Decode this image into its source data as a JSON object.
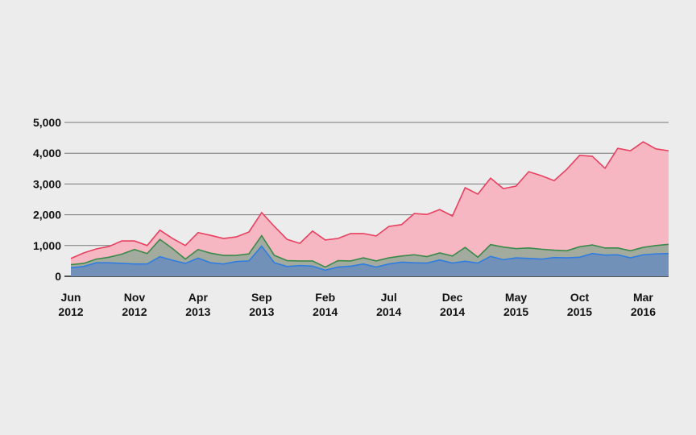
{
  "chart_data": {
    "type": "area",
    "x": [
      "2012-06",
      "2012-07",
      "2012-08",
      "2012-09",
      "2012-10",
      "2012-11",
      "2012-12",
      "2013-01",
      "2013-02",
      "2013-03",
      "2013-04",
      "2013-05",
      "2013-06",
      "2013-07",
      "2013-08",
      "2013-09",
      "2013-10",
      "2013-11",
      "2013-12",
      "2014-01",
      "2014-02",
      "2014-03",
      "2014-04",
      "2014-05",
      "2014-06",
      "2014-07",
      "2014-08",
      "2014-09",
      "2014-10",
      "2014-11",
      "2014-12",
      "2015-01",
      "2015-02",
      "2015-03",
      "2015-04",
      "2015-05",
      "2015-06",
      "2015-07",
      "2015-08",
      "2015-09",
      "2015-10",
      "2015-11",
      "2015-12",
      "2016-01",
      "2016-02",
      "2016-03",
      "2016-04",
      "2016-05"
    ],
    "series": [
      {
        "color": "#e8405f",
        "fill": "#f6b6c2",
        "values": [
          580,
          760,
          890,
          970,
          1150,
          1150,
          1000,
          1500,
          1230,
          1000,
          1420,
          1330,
          1230,
          1280,
          1440,
          2070,
          1620,
          1200,
          1070,
          1470,
          1180,
          1230,
          1390,
          1390,
          1310,
          1620,
          1680,
          2040,
          2010,
          2170,
          1960,
          2880,
          2670,
          3190,
          2850,
          2930,
          3400,
          3270,
          3110,
          3480,
          3930,
          3900,
          3510,
          4160,
          4080,
          4370,
          4140,
          4080
        ]
      },
      {
        "color": "#3a8a4a",
        "fill": "#a3ab9f",
        "values": [
          380,
          420,
          560,
          620,
          720,
          870,
          740,
          1200,
          900,
          560,
          870,
          750,
          680,
          680,
          730,
          1320,
          680,
          510,
          500,
          500,
          300,
          510,
          500,
          600,
          500,
          600,
          660,
          700,
          640,
          760,
          660,
          940,
          620,
          1030,
          950,
          900,
          920,
          880,
          850,
          830,
          960,
          1020,
          920,
          920,
          830,
          940,
          1000,
          1040
        ]
      },
      {
        "color": "#2f7de1",
        "fill": "#7191b8",
        "values": [
          280,
          320,
          440,
          440,
          420,
          400,
          400,
          640,
          520,
          420,
          590,
          440,
          400,
          480,
          500,
          980,
          440,
          320,
          350,
          330,
          200,
          300,
          330,
          400,
          300,
          400,
          460,
          440,
          430,
          530,
          430,
          490,
          430,
          650,
          540,
          600,
          580,
          560,
          610,
          600,
          620,
          740,
          690,
          700,
          600,
          700,
          730,
          740
        ]
      }
    ],
    "xticks": [
      {
        "value": "2012-06",
        "label": "Jun 2012"
      },
      {
        "value": "2012-11",
        "label": "Nov 2012"
      },
      {
        "value": "2013-04",
        "label": "Apr 2013"
      },
      {
        "value": "2013-09",
        "label": "Sep 2013"
      },
      {
        "value": "2014-02",
        "label": "Feb 2014"
      },
      {
        "value": "2014-07",
        "label": "Jul 2014"
      },
      {
        "value": "2014-12",
        "label": "Dec 2014"
      },
      {
        "value": "2015-05",
        "label": "May 2015"
      },
      {
        "value": "2015-10",
        "label": "Oct 2015"
      },
      {
        "value": "2016-03",
        "label": "Mar 2016"
      }
    ],
    "ylim": [
      0,
      5000
    ],
    "yticks": [
      0,
      {
        "value": 1000,
        "label": "1,000"
      },
      {
        "value": 2000,
        "label": "2,000"
      },
      {
        "value": 3000,
        "label": "3,000"
      },
      {
        "value": 4000,
        "label": "4,000"
      },
      {
        "value": 5000,
        "label": "5,000"
      }
    ],
    "grid": true
  }
}
